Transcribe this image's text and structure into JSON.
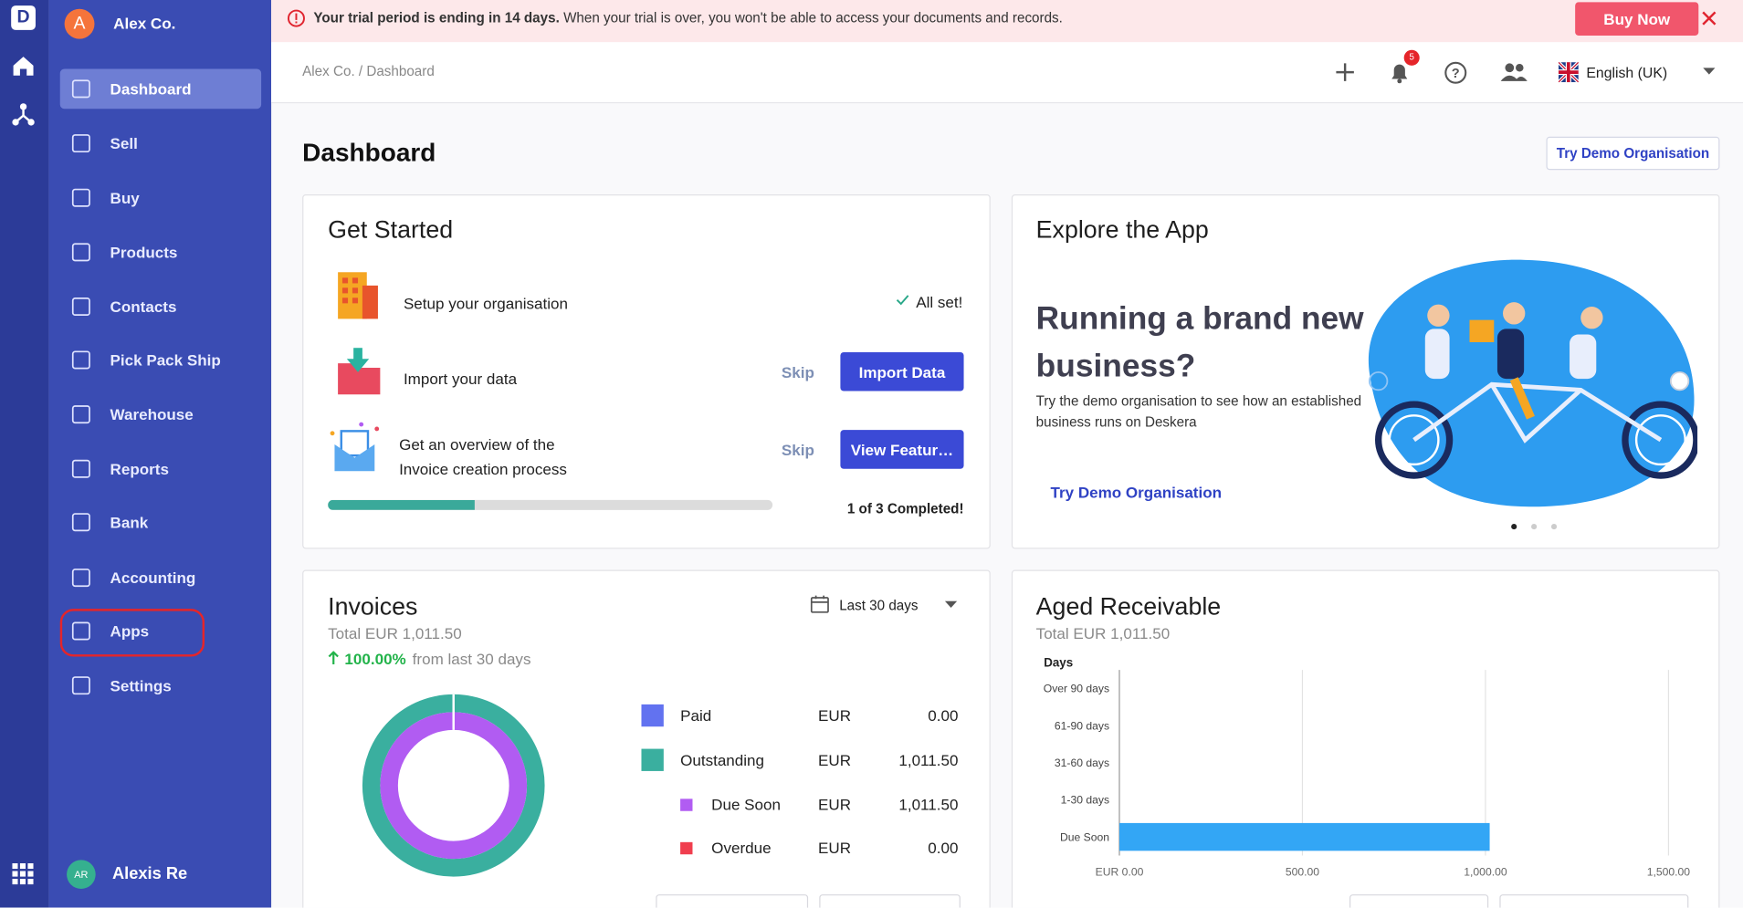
{
  "sidebar": {
    "logo": "D",
    "org_initial": "A",
    "org_name": "Alex Co.",
    "menu": [
      "Dashboard",
      "Sell",
      "Buy",
      "Products",
      "Contacts",
      "Pick Pack Ship",
      "Warehouse",
      "Reports",
      "Bank",
      "Accounting",
      "Apps",
      "Settings"
    ],
    "user_initials": "AR",
    "user_name": "Alexis Re"
  },
  "banner": {
    "strong": "Your trial period is ending in 14 days.",
    "text": "When your trial is over, you won't be able to access your documents and records.",
    "button": "Buy Now"
  },
  "header": {
    "breadcrumb": "Alex Co. / Dashboard",
    "badge": "5",
    "language": "English (UK)"
  },
  "page": {
    "title": "Dashboard",
    "demo_button": "Try Demo Organisation"
  },
  "get_started": {
    "title": "Get Started",
    "steps": [
      {
        "label": "Setup your organisation",
        "status": "All set!"
      },
      {
        "label": "Import your data",
        "skip": "Skip",
        "action": "Import Data"
      },
      {
        "label": "Get an overview of the Invoice creation process",
        "skip": "Skip",
        "action": "View Featur…"
      }
    ],
    "progress": 33,
    "progress_label": "1 of 3 Completed!"
  },
  "explore": {
    "title": "Explore the App",
    "heading": "Running a brand new business?",
    "text": "Try the demo organisation to see how an established business runs on Deskera",
    "link": "Try Demo Organisation"
  },
  "invoices": {
    "title": "Invoices",
    "total": "Total EUR 1,011.50",
    "change": "100.00%",
    "change_text": "from last 30 days",
    "period": "Last 30 days",
    "items": [
      {
        "name": "Paid",
        "currency": "EUR",
        "value": 0,
        "value_label": "0.00",
        "color": "#6272f0",
        "ring": "outer"
      },
      {
        "name": "Outstanding",
        "currency": "EUR",
        "value": 1011.5,
        "value_label": "1,011.50",
        "color": "#3aaf9f",
        "ring": "outer"
      },
      {
        "name": "Due Soon",
        "currency": "EUR",
        "value": 1011.5,
        "value_label": "1,011.50",
        "color": "#b15cf2",
        "ring": "inner"
      },
      {
        "name": "Overdue",
        "currency": "EUR",
        "value": 0,
        "value_label": "0.00",
        "color": "#f03e4e",
        "ring": "inner"
      }
    ]
  },
  "aged_receivable": {
    "title": "Aged Receivable",
    "total": "Total EUR 1,011.50",
    "chart": {
      "type": "bar",
      "y_label": "Days",
      "categories": [
        "Over 90 days",
        "61-90 days",
        "31-60 days",
        "1-30 days",
        "Due Soon"
      ],
      "values": [
        0,
        0,
        0,
        0,
        1011.5
      ],
      "color": "#33a6f5",
      "xlim": [
        0,
        1500
      ],
      "xticks": [
        {
          "value": 0,
          "label": "EUR 0.00"
        },
        {
          "value": 500,
          "label": "500.00"
        },
        {
          "value": 1000,
          "label": "1,000.00"
        },
        {
          "value": 1500,
          "label": "1,500.00"
        }
      ],
      "grid": true
    }
  }
}
